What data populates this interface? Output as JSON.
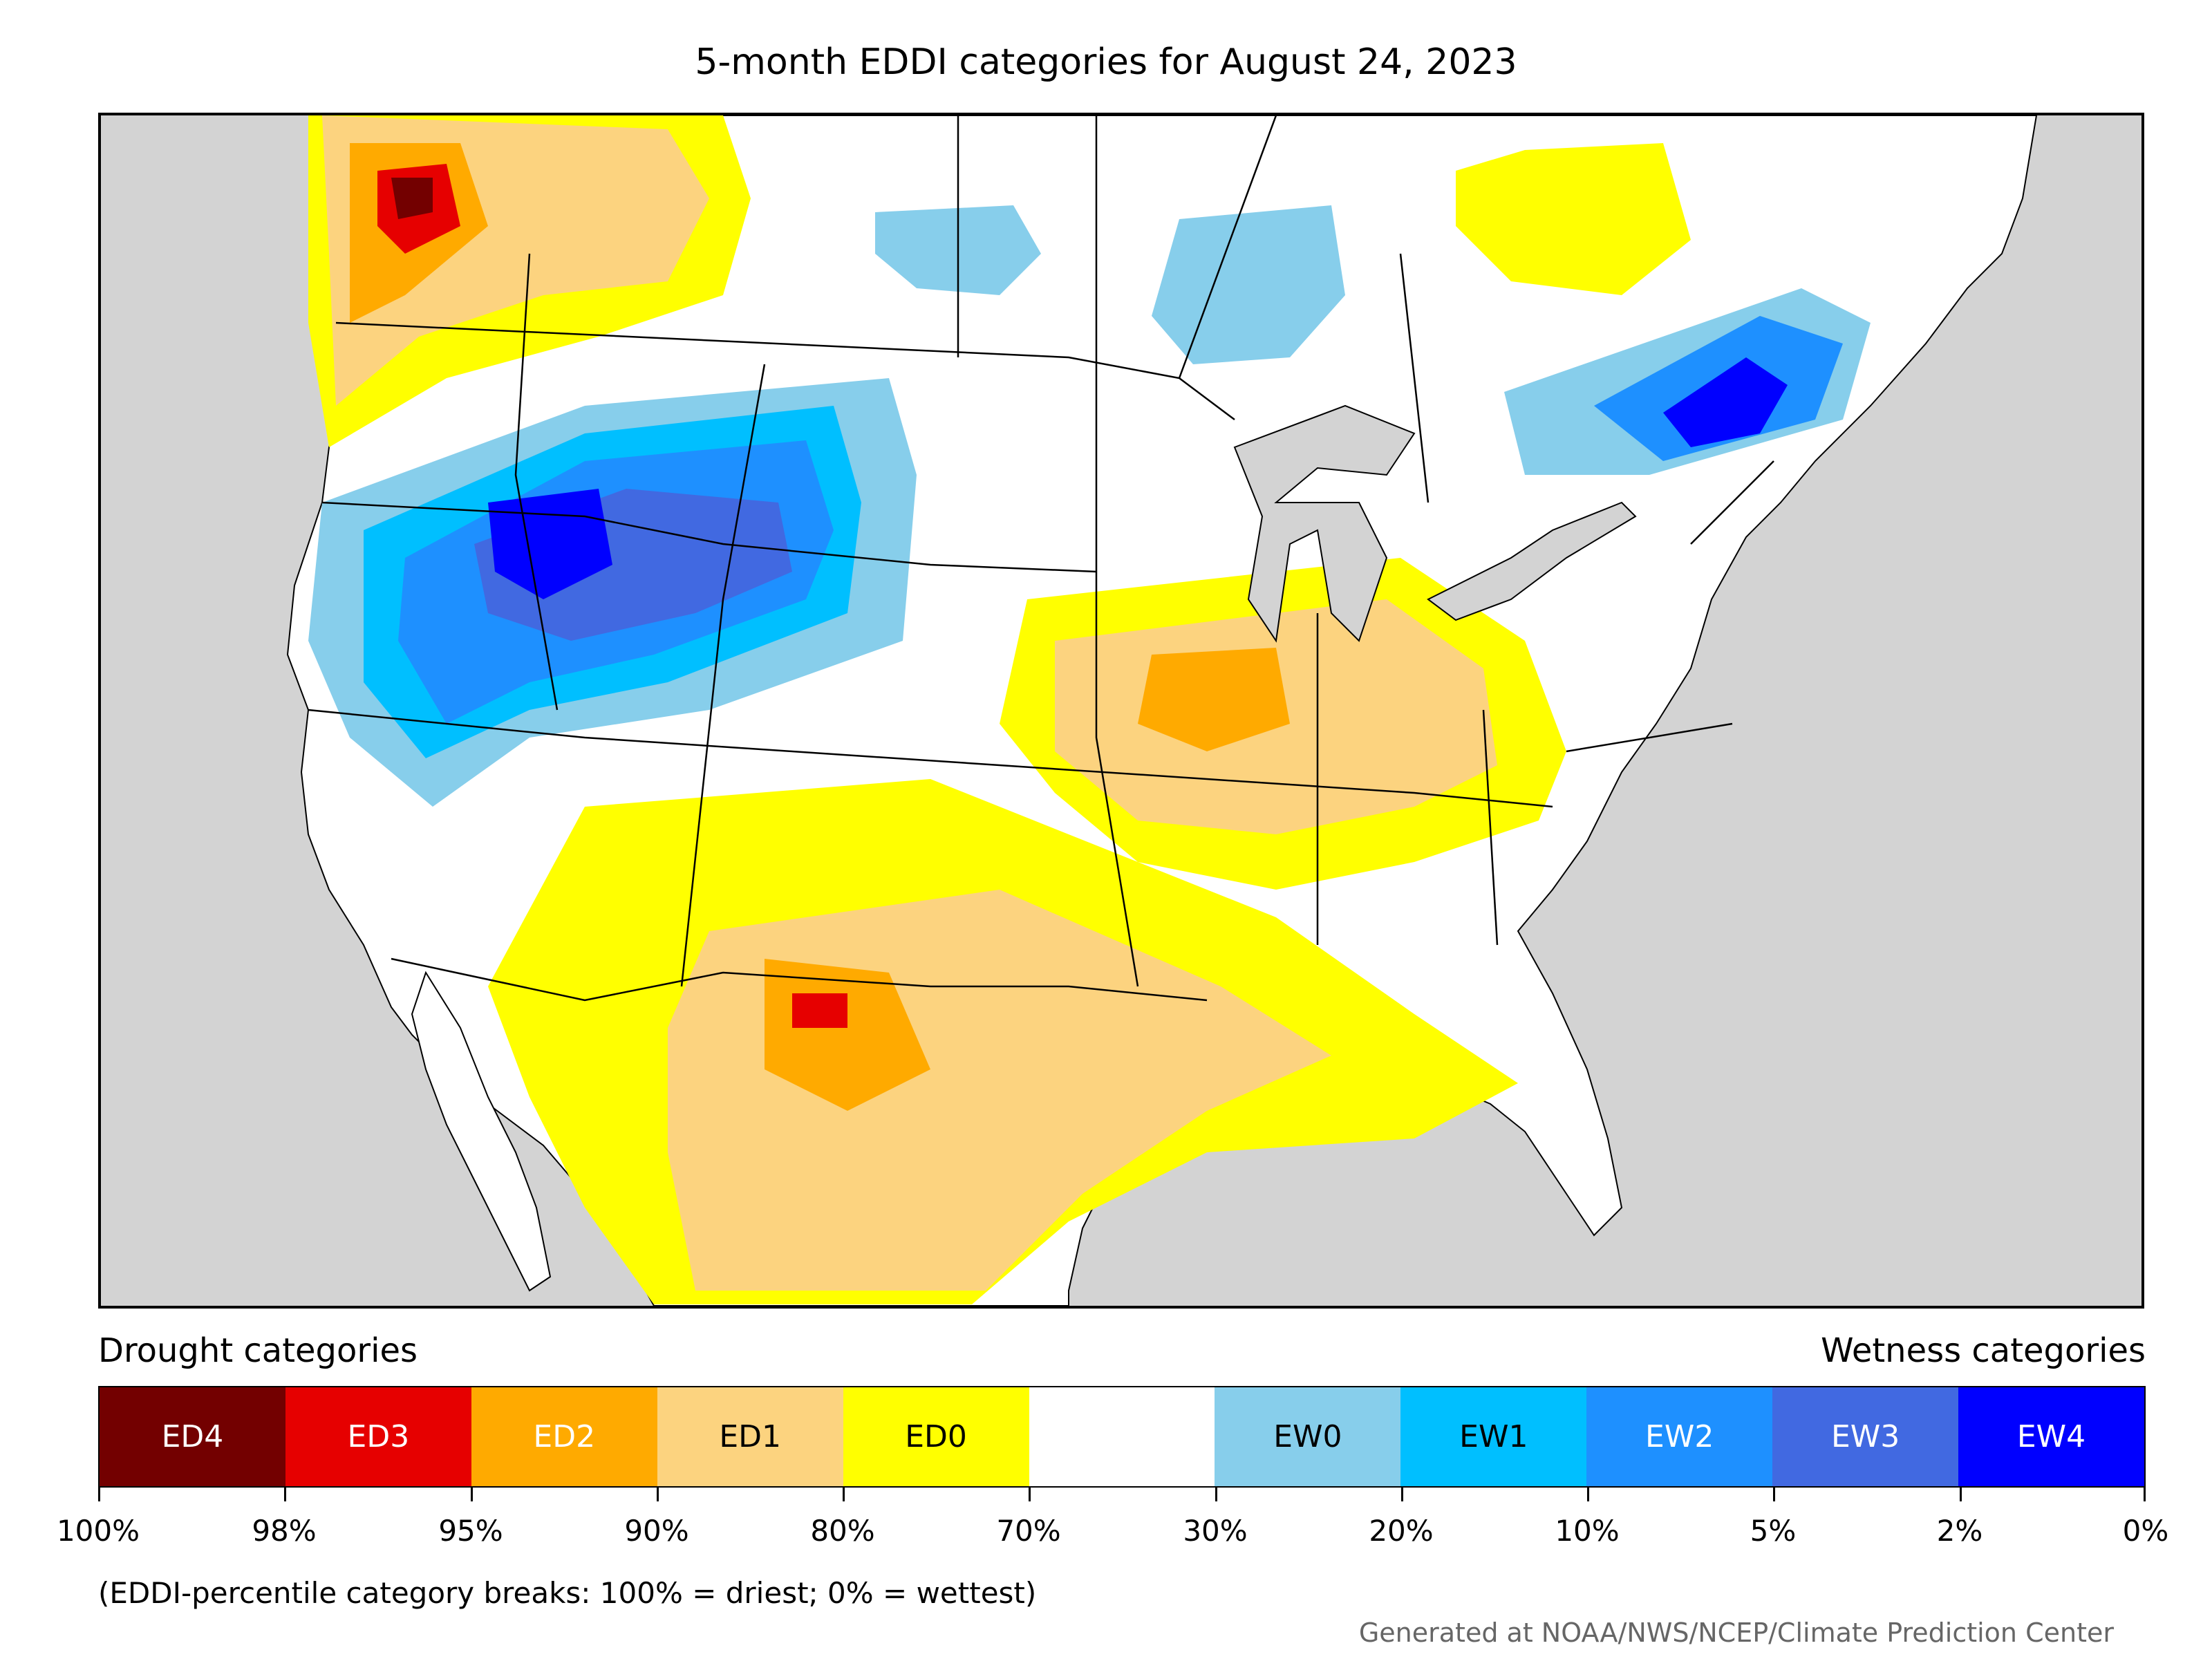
{
  "title": "5-month EDDI categories for August 24, 2023",
  "legend": {
    "drought_heading": "Drought categories",
    "wetness_heading": "Wetness categories",
    "categories": [
      {
        "label": "ED4",
        "color": "#730000",
        "text_color": "#ffffff"
      },
      {
        "label": "ED3",
        "color": "#e60000",
        "text_color": "#ffffff"
      },
      {
        "label": "ED2",
        "color": "#ffaa00",
        "text_color": "#ffffff"
      },
      {
        "label": "ED1",
        "color": "#fcd37f",
        "text_color": "#000000"
      },
      {
        "label": "ED0",
        "color": "#ffff00",
        "text_color": "#000000"
      },
      {
        "label": "",
        "color": "#ffffff",
        "text_color": "#000000"
      },
      {
        "label": "EW0",
        "color": "#87ceeb",
        "text_color": "#000000"
      },
      {
        "label": "EW1",
        "color": "#00bfff",
        "text_color": "#000000"
      },
      {
        "label": "EW2",
        "color": "#1e90ff",
        "text_color": "#ffffff"
      },
      {
        "label": "EW3",
        "color": "#4169e1",
        "text_color": "#ffffff"
      },
      {
        "label": "EW4",
        "color": "#0000ff",
        "text_color": "#ffffff"
      }
    ],
    "tick_labels": [
      "100%",
      "98%",
      "95%",
      "90%",
      "80%",
      "70%",
      "30%",
      "20%",
      "10%",
      "5%",
      "2%",
      "0%"
    ],
    "note": "(EDDI-percentile category breaks: 100% = driest; 0% = wettest)"
  },
  "credit": "Generated at NOAA/NWS/NCEP/Climate Prediction Center",
  "colors": {
    "ocean": "#d3d3d3",
    "land": "#ffffff",
    "border": "#000000"
  }
}
